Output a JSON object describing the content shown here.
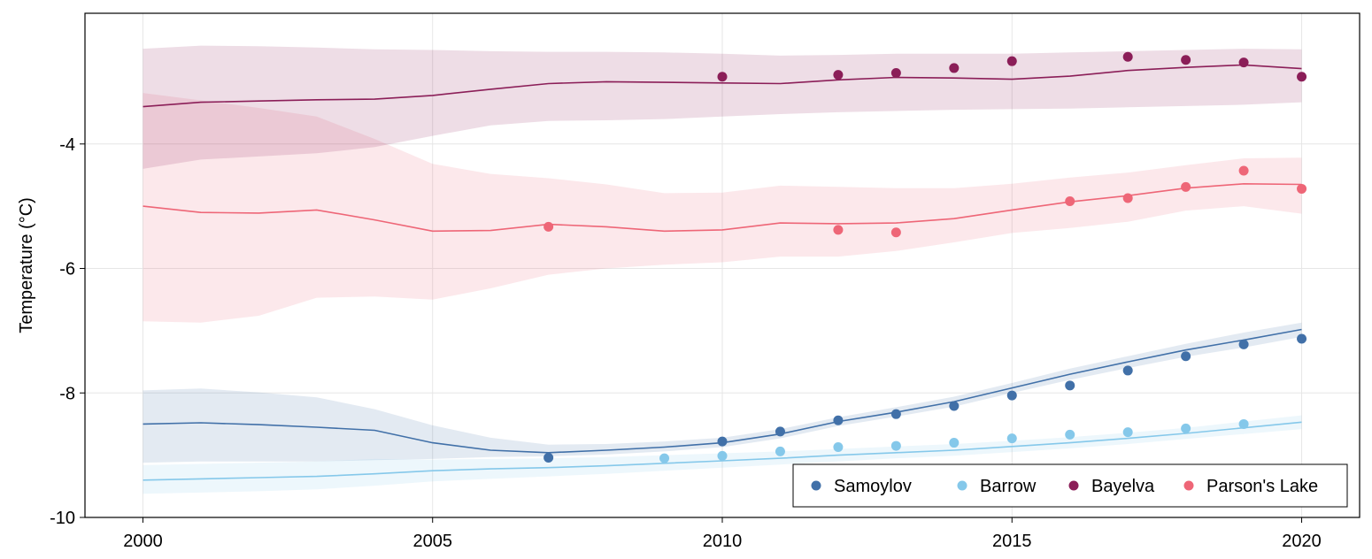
{
  "chart_data": {
    "type": "line",
    "title": "",
    "xlabel": "",
    "ylabel": "Temperature (°C)",
    "xlim": [
      1999,
      2021
    ],
    "ylim": [
      -10,
      -1.9
    ],
    "x_ticks": [
      2000,
      2005,
      2010,
      2015,
      2020
    ],
    "y_ticks": [
      -10,
      -8,
      -6,
      -4
    ],
    "x_tick_labels": [
      "2000",
      "2005",
      "2010",
      "2015",
      "2020"
    ],
    "y_tick_labels": [
      "-10",
      "-8",
      "-6",
      "-4"
    ],
    "grid": true,
    "legend_position": "bottom-right",
    "years": [
      2000,
      2001,
      2002,
      2003,
      2004,
      2005,
      2006,
      2007,
      2008,
      2009,
      2010,
      2011,
      2012,
      2013,
      2014,
      2015,
      2016,
      2017,
      2018,
      2019,
      2020
    ],
    "series": [
      {
        "name": "Samoylov",
        "color": "#4170a8",
        "line": [
          -8.5,
          -8.48,
          -8.51,
          -8.55,
          -8.6,
          -8.8,
          -8.92,
          -8.96,
          -8.92,
          -8.87,
          -8.8,
          -8.66,
          -8.46,
          -8.31,
          -8.14,
          -7.92,
          -7.7,
          -7.5,
          -7.31,
          -7.15,
          -6.98
        ],
        "lower": [
          -9.12,
          -9.1,
          -9.1,
          -9.1,
          -9.08,
          -9.06,
          -9.03,
          -9.02,
          -8.99,
          -8.94,
          -8.87,
          -8.73,
          -8.53,
          -8.38,
          -8.22,
          -8.0,
          -7.79,
          -7.6,
          -7.42,
          -7.27,
          -7.1
        ],
        "upper": [
          -7.96,
          -7.93,
          -7.99,
          -8.07,
          -8.26,
          -8.52,
          -8.72,
          -8.83,
          -8.82,
          -8.78,
          -8.72,
          -8.58,
          -8.39,
          -8.23,
          -8.06,
          -7.84,
          -7.61,
          -7.41,
          -7.21,
          -7.03,
          -6.87
        ],
        "points_x": [
          2007,
          2010,
          2011,
          2012,
          2013,
          2014,
          2015,
          2016,
          2017,
          2018,
          2019,
          2020
        ],
        "points_y": [
          -9.04,
          -8.78,
          -8.62,
          -8.44,
          -8.34,
          -8.21,
          -8.04,
          -7.88,
          -7.64,
          -7.41,
          -7.22,
          -7.13
        ]
      },
      {
        "name": "Barrow",
        "color": "#85c8ea",
        "line": [
          -9.4,
          -9.38,
          -9.36,
          -9.34,
          -9.3,
          -9.25,
          -9.22,
          -9.2,
          -9.17,
          -9.13,
          -9.09,
          -9.05,
          -9.0,
          -8.96,
          -8.92,
          -8.86,
          -8.8,
          -8.73,
          -8.65,
          -8.56,
          -8.47
        ],
        "lower": [
          -9.62,
          -9.6,
          -9.58,
          -9.55,
          -9.49,
          -9.42,
          -9.38,
          -9.34,
          -9.3,
          -9.25,
          -9.2,
          -9.15,
          -9.1,
          -9.05,
          -9.01,
          -8.95,
          -8.89,
          -8.82,
          -8.74,
          -8.66,
          -8.58
        ],
        "upper": [
          -9.16,
          -9.14,
          -9.12,
          -9.1,
          -9.06,
          -9.07,
          -9.06,
          -9.05,
          -9.03,
          -9.0,
          -8.97,
          -8.94,
          -8.9,
          -8.86,
          -8.82,
          -8.77,
          -8.71,
          -8.64,
          -8.56,
          -8.46,
          -8.36
        ],
        "points_x": [
          2009,
          2010,
          2011,
          2012,
          2013,
          2014,
          2015,
          2016,
          2017,
          2018,
          2019
        ],
        "points_y": [
          -9.05,
          -9.01,
          -8.94,
          -8.87,
          -8.85,
          -8.8,
          -8.73,
          -8.67,
          -8.63,
          -8.57,
          -8.5
        ]
      },
      {
        "name": "Bayelva",
        "color": "#8b1e58",
        "line": [
          -3.4,
          -3.33,
          -3.31,
          -3.29,
          -3.28,
          -3.22,
          -3.12,
          -3.03,
          -3.0,
          -3.01,
          -3.02,
          -3.03,
          -2.97,
          -2.93,
          -2.94,
          -2.96,
          -2.91,
          -2.82,
          -2.77,
          -2.73,
          -2.79
        ],
        "lower": [
          -4.4,
          -4.25,
          -4.2,
          -4.15,
          -4.05,
          -3.87,
          -3.7,
          -3.63,
          -3.62,
          -3.6,
          -3.56,
          -3.52,
          -3.49,
          -3.47,
          -3.45,
          -3.44,
          -3.43,
          -3.41,
          -3.39,
          -3.37,
          -3.33
        ],
        "upper": [
          -2.47,
          -2.42,
          -2.43,
          -2.45,
          -2.48,
          -2.49,
          -2.51,
          -2.52,
          -2.52,
          -2.53,
          -2.55,
          -2.58,
          -2.57,
          -2.55,
          -2.55,
          -2.55,
          -2.53,
          -2.51,
          -2.49,
          -2.47,
          -2.48
        ],
        "points_x": [
          2010,
          2012,
          2013,
          2014,
          2015,
          2017,
          2018,
          2019,
          2020
        ],
        "points_y": [
          -2.92,
          -2.89,
          -2.86,
          -2.78,
          -2.67,
          -2.6,
          -2.65,
          -2.69,
          -2.92
        ]
      },
      {
        "name": "Parson's Lake",
        "color": "#ee6677",
        "line": [
          -5.0,
          -5.1,
          -5.11,
          -5.06,
          -5.22,
          -5.4,
          -5.39,
          -5.29,
          -5.33,
          -5.4,
          -5.38,
          -5.27,
          -5.28,
          -5.27,
          -5.2,
          -5.06,
          -4.93,
          -4.83,
          -4.71,
          -4.64,
          -4.65
        ],
        "lower": [
          -6.85,
          -6.87,
          -6.76,
          -6.47,
          -6.45,
          -6.5,
          -6.32,
          -6.1,
          -6.0,
          -5.94,
          -5.9,
          -5.81,
          -5.81,
          -5.72,
          -5.58,
          -5.43,
          -5.35,
          -5.25,
          -5.07,
          -5.0,
          -5.12
        ],
        "upper": [
          -3.18,
          -3.3,
          -3.42,
          -3.56,
          -3.92,
          -4.32,
          -4.48,
          -4.55,
          -4.65,
          -4.79,
          -4.78,
          -4.67,
          -4.69,
          -4.71,
          -4.71,
          -4.64,
          -4.54,
          -4.46,
          -4.34,
          -4.23,
          -4.22
        ],
        "points_x": [
          2007,
          2012,
          2013,
          2016,
          2017,
          2018,
          2019,
          2020
        ],
        "points_y": [
          -5.33,
          -5.38,
          -5.42,
          -4.92,
          -4.87,
          -4.69,
          -4.43,
          -4.72
        ]
      }
    ]
  }
}
